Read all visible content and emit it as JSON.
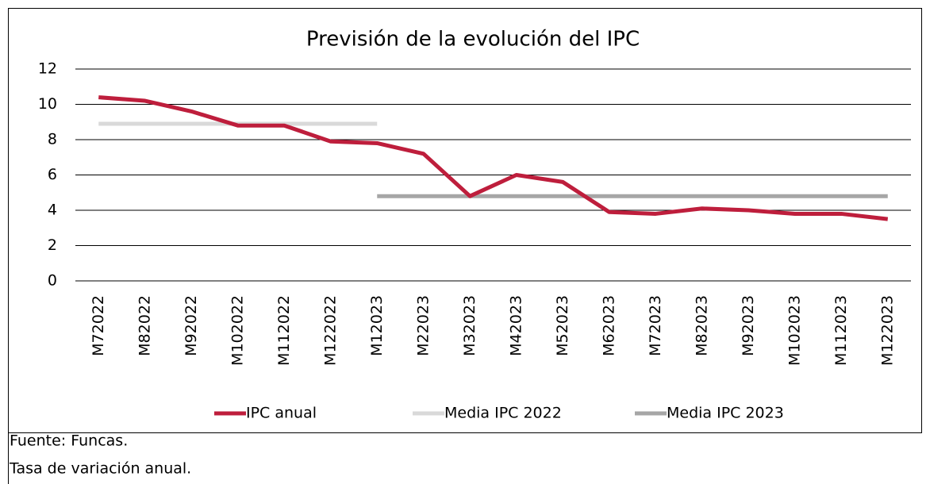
{
  "chart_data": {
    "type": "line",
    "title": "Previsión de la evolución del IPC",
    "categories": [
      "M72022",
      "M82022",
      "M92022",
      "M102022",
      "M112022",
      "M122022",
      "M12023",
      "M22023",
      "M32023",
      "M42023",
      "M52023",
      "M62023",
      "M72023",
      "M82023",
      "M92023",
      "M102023",
      "M112023",
      "M122023"
    ],
    "series": [
      {
        "name": "IPC anual",
        "color": "#be1e3c",
        "values": [
          10.4,
          10.2,
          9.6,
          8.8,
          8.8,
          7.9,
          7.8,
          7.2,
          4.8,
          6.0,
          5.6,
          3.9,
          3.8,
          4.1,
          4.0,
          3.8,
          3.8,
          3.5
        ]
      },
      {
        "name": "Media IPC 2022",
        "color": "#d9d9d9",
        "values": [
          8.9,
          8.9,
          8.9,
          8.9,
          8.9,
          8.9,
          8.9,
          null,
          null,
          null,
          null,
          null,
          null,
          null,
          null,
          null,
          null,
          null
        ]
      },
      {
        "name": "Media IPC 2023",
        "color": "#a6a6a6",
        "values": [
          null,
          null,
          null,
          null,
          null,
          null,
          4.8,
          4.8,
          4.8,
          4.8,
          4.8,
          4.8,
          4.8,
          4.8,
          4.8,
          4.8,
          4.8,
          4.8
        ]
      }
    ],
    "ylim": [
      0,
      12
    ],
    "yticks": [
      0,
      2,
      4,
      6,
      8,
      10,
      12
    ],
    "grid": true,
    "legend": "bottom",
    "notes": [
      "Fuente: Funcas.",
      "Tasa de variación anual."
    ]
  }
}
